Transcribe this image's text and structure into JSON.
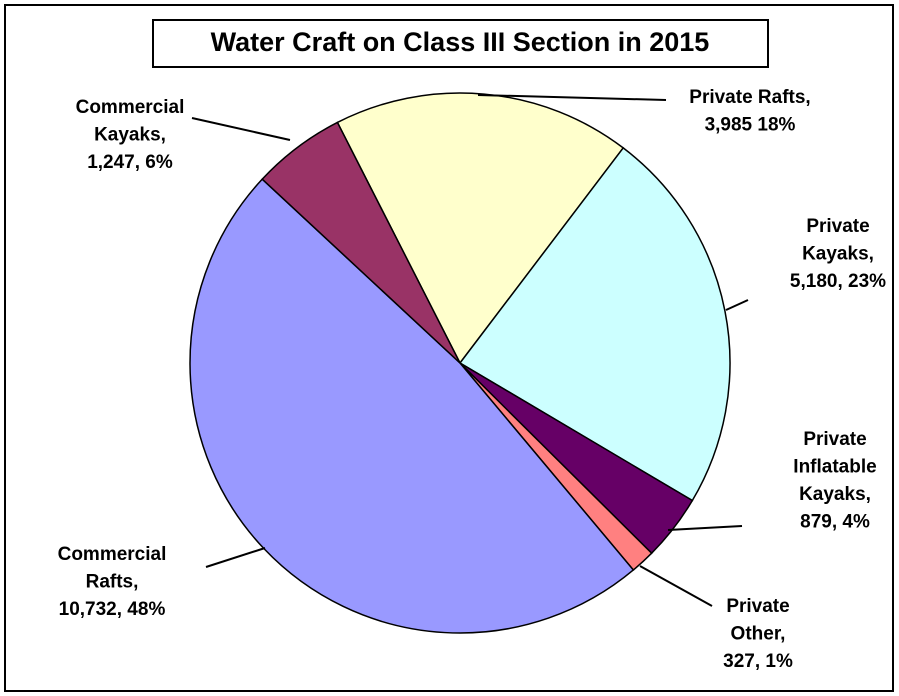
{
  "chart_data": {
    "type": "pie",
    "title": "Water Craft on Class III Section in 2015",
    "categories": [
      [
        "Private Rafts,"
      ],
      [
        "Private",
        "Kayaks,"
      ],
      [
        "Private",
        "Inflatable",
        "Kayaks,"
      ],
      [
        "Private",
        "Other,"
      ],
      [
        "Commercial",
        "Rafts,"
      ],
      [
        "Commercial",
        "Kayaks,"
      ]
    ],
    "values": [
      3985,
      5180,
      879,
      327,
      10732,
      1247
    ],
    "value_labels": [
      "3,985 18%",
      "5,180, 23%",
      "879, 4%",
      "327, 1%",
      "10,732, 48%",
      "1,247, 6%"
    ],
    "colors": [
      "#ffffcc",
      "#ccffff",
      "#660066",
      "#ff8080",
      "#9999ff",
      "#993366"
    ]
  }
}
